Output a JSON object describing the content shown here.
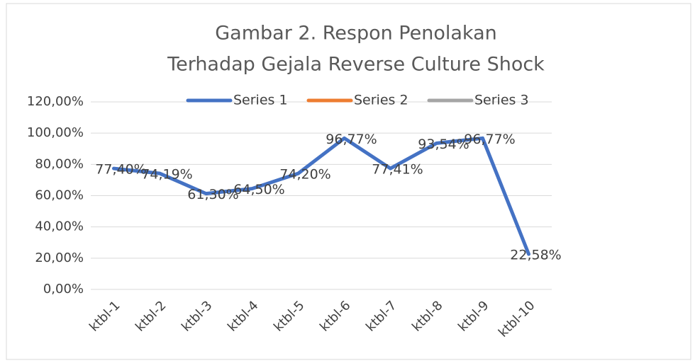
{
  "chart_data": {
    "type": "line",
    "title": [
      "Gambar 2. Respon Penolakan",
      "Terhadap Gejala Reverse Culture Shock"
    ],
    "categories": [
      "ktbl-1",
      "ktbl-2",
      "ktbl-3",
      "ktbl-4",
      "ktbl-5",
      "ktbl-6",
      "ktbl-7",
      "ktbl-8",
      "ktbl-9",
      "ktbl-10"
    ],
    "series": [
      {
        "name": "Series 1",
        "color": "#4472c4",
        "values": [
          77.4,
          74.19,
          61.3,
          64.5,
          74.2,
          96.77,
          77.41,
          93.54,
          96.77,
          22.58
        ],
        "value_labels": [
          "77,40%",
          "74,19%",
          "61,30%",
          "64,50%",
          "74,20%",
          "96,77%",
          "77,41%",
          "93,54%",
          "96,77%",
          "22,58%"
        ]
      },
      {
        "name": "Series 2",
        "color": "#ed7d31",
        "values": [
          null,
          null,
          null,
          null,
          null,
          null,
          null,
          null,
          null,
          null
        ]
      },
      {
        "name": "Series 3",
        "color": "#a5a5a5",
        "values": [
          null,
          null,
          null,
          null,
          null,
          null,
          null,
          null,
          null,
          null
        ]
      }
    ],
    "ylim": [
      0,
      120
    ],
    "yticks": [
      {
        "value": 0,
        "label": "0,00%"
      },
      {
        "value": 20,
        "label": "20,00%"
      },
      {
        "value": 40,
        "label": "40,00%"
      },
      {
        "value": 60,
        "label": "60,00%"
      },
      {
        "value": 80,
        "label": "80,00%"
      },
      {
        "value": 100,
        "label": "100,00%"
      },
      {
        "value": 120,
        "label": "120,00%"
      }
    ],
    "grid": true,
    "legend": "top"
  }
}
